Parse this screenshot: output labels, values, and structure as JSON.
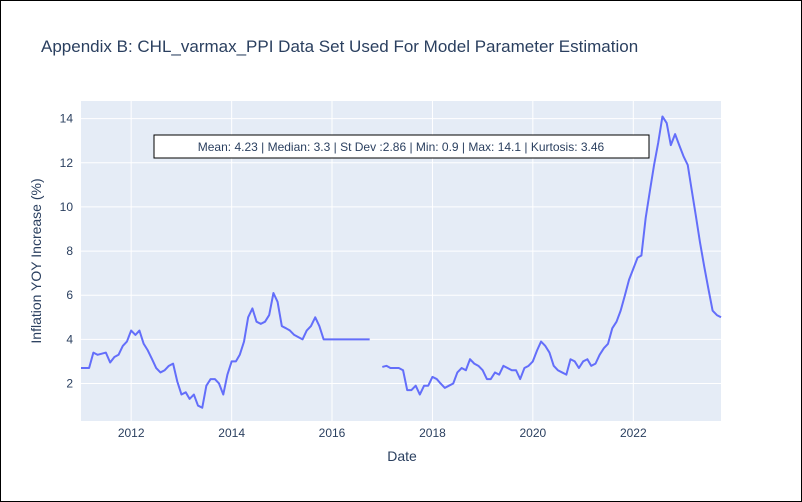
{
  "chart_data": {
    "type": "line",
    "title": "Appendix B: CHL_varmax_PPI Data Set Used For Model Parameter Estimation",
    "xlabel": "Date",
    "ylabel": "Inflation YOY Increase (%)",
    "x_ticks": [
      "2012",
      "2014",
      "2016",
      "2018",
      "2020",
      "2022"
    ],
    "y_ticks": [
      "2",
      "4",
      "6",
      "8",
      "10",
      "12",
      "14"
    ],
    "xlim": [
      "2011-01-01",
      "2023-10-01"
    ],
    "ylim": [
      0.3,
      14.8
    ],
    "grid": true,
    "plot_background": "#e5ecf6",
    "line_color": "#636efa",
    "annotation": "Mean: 4.23 | Median: 3.3 | St Dev :2.86 | Min: 0.9 | Max: 14.1 | Kurtosis: 3.46",
    "series": [
      {
        "x": [
          "2011-01-01",
          "2011-02-01",
          "2011-03-01",
          "2011-04-01",
          "2011-05-01",
          "2011-06-01",
          "2011-07-01",
          "2011-08-01",
          "2011-09-01",
          "2011-10-01",
          "2011-11-01",
          "2011-12-01",
          "2012-01-01",
          "2012-02-01",
          "2012-03-01",
          "2012-04-01",
          "2012-05-01",
          "2012-06-01",
          "2012-07-01",
          "2012-08-01",
          "2012-09-01",
          "2012-10-01",
          "2012-11-01",
          "2012-12-01",
          "2013-01-01",
          "2013-02-01",
          "2013-03-01",
          "2013-04-01",
          "2013-05-01",
          "2013-06-01",
          "2013-07-01",
          "2013-08-01",
          "2013-09-01",
          "2013-10-01",
          "2013-11-01",
          "2013-12-01",
          "2014-01-01",
          "2014-02-01",
          "2014-03-01",
          "2014-04-01",
          "2014-05-01",
          "2014-06-01",
          "2014-07-01",
          "2014-08-01",
          "2014-09-01",
          "2014-10-01",
          "2014-11-01",
          "2014-12-01",
          "2015-01-01",
          "2015-02-01",
          "2015-03-01",
          "2015-04-01",
          "2015-05-01",
          "2015-06-01",
          "2015-07-01",
          "2015-08-01",
          "2015-09-01",
          "2015-10-01",
          "2015-11-01",
          "2015-12-01",
          "2016-01-01",
          "2016-02-01",
          "2016-03-01",
          "2016-04-01",
          "2016-05-01",
          "2016-06-01",
          "2016-07-01",
          "2016-08-01",
          "2016-09-01",
          "2016-10-01",
          "2016-11-01",
          "2016-12-01",
          "2017-01-01",
          "2017-02-01",
          "2017-03-01",
          "2017-04-01",
          "2017-05-01",
          "2017-06-01",
          "2017-07-01",
          "2017-08-01",
          "2017-09-01",
          "2017-10-01",
          "2017-11-01",
          "2017-12-01",
          "2018-01-01",
          "2018-02-01",
          "2018-03-01",
          "2018-04-01",
          "2018-05-01",
          "2018-06-01",
          "2018-07-01",
          "2018-08-01",
          "2018-09-01",
          "2018-10-01",
          "2018-11-01",
          "2018-12-01",
          "2019-01-01",
          "2019-02-01",
          "2019-03-01",
          "2019-04-01",
          "2019-05-01",
          "2019-06-01",
          "2019-07-01",
          "2019-08-01",
          "2019-09-01",
          "2019-10-01",
          "2019-11-01",
          "2019-12-01",
          "2020-01-01",
          "2020-02-01",
          "2020-03-01",
          "2020-04-01",
          "2020-05-01",
          "2020-06-01",
          "2020-07-01",
          "2020-08-01",
          "2020-09-01",
          "2020-10-01",
          "2020-11-01",
          "2020-12-01",
          "2021-01-01",
          "2021-02-01",
          "2021-03-01",
          "2021-04-01",
          "2021-05-01",
          "2021-06-01",
          "2021-07-01",
          "2021-08-01",
          "2021-09-01",
          "2021-10-01",
          "2021-11-01",
          "2021-12-01",
          "2022-01-01",
          "2022-02-01",
          "2022-03-01",
          "2022-04-01",
          "2022-05-01",
          "2022-06-01",
          "2022-07-01",
          "2022-08-01",
          "2022-09-01",
          "2022-10-01",
          "2022-11-01",
          "2022-12-01",
          "2023-01-01",
          "2023-02-01",
          "2023-03-01",
          "2023-04-01",
          "2023-05-01",
          "2023-06-01",
          "2023-07-01",
          "2023-08-01",
          "2023-09-01",
          "2023-10-01"
        ],
        "y": [
          2.7,
          2.7,
          2.7,
          3.4,
          3.3,
          3.35,
          3.4,
          2.95,
          3.2,
          3.3,
          3.7,
          3.9,
          4.4,
          4.2,
          4.4,
          3.8,
          3.5,
          3.1,
          2.7,
          2.5,
          2.6,
          2.8,
          2.9,
          2.1,
          1.5,
          1.6,
          1.3,
          1.5,
          1.0,
          0.9,
          1.9,
          2.2,
          2.2,
          2.0,
          1.5,
          2.4,
          3.0,
          3.0,
          3.3,
          3.9,
          5.0,
          5.4,
          4.8,
          4.7,
          4.8,
          5.1,
          6.1,
          5.7,
          4.6,
          4.5,
          4.4,
          4.2,
          4.1,
          4.0,
          4.4,
          4.6,
          5.0,
          4.6,
          4.0,
          4.0,
          4.0,
          4.0,
          4.0,
          4.0,
          4.0,
          4.0,
          4.0,
          4.0,
          4.0,
          4.0,
          null,
          null,
          2.75,
          2.8,
          2.7,
          2.7,
          2.7,
          2.6,
          1.7,
          1.7,
          1.9,
          1.5,
          1.9,
          1.9,
          2.3,
          2.2,
          2.0,
          1.8,
          1.9,
          2.0,
          2.5,
          2.7,
          2.6,
          3.1,
          2.9,
          2.8,
          2.6,
          2.2,
          2.2,
          2.5,
          2.4,
          2.8,
          2.7,
          2.6,
          2.6,
          2.2,
          2.7,
          2.8,
          3.0,
          3.5,
          3.9,
          3.7,
          3.4,
          2.8,
          2.6,
          2.5,
          2.4,
          3.1,
          3.0,
          2.7,
          3.0,
          3.1,
          2.8,
          2.9,
          3.3,
          3.6,
          3.8,
          4.5,
          4.8,
          5.3,
          6.0,
          6.7,
          7.2,
          7.7,
          7.8,
          9.5,
          10.7,
          11.9,
          12.9,
          14.1,
          13.8,
          12.8,
          13.3,
          12.8,
          12.3,
          11.9,
          10.8,
          9.6,
          8.4,
          7.3,
          6.3,
          5.3,
          5.1,
          5.0
        ]
      }
    ]
  }
}
